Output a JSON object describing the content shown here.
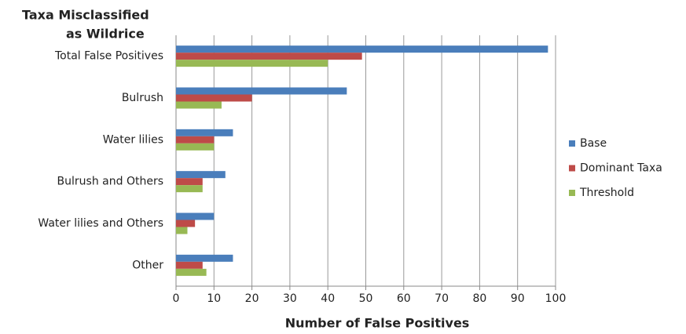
{
  "chart_data": {
    "type": "bar",
    "orientation": "horizontal",
    "title": [
      "Taxa Misclassified",
      "as Wildrice"
    ],
    "xlabel": "Number of False Positives",
    "categories": [
      "Total False Positives",
      "Bulrush",
      "Water lilies",
      "Bulrush and Others",
      "Water lilies and Others",
      "Other"
    ],
    "series": [
      {
        "name": "Base",
        "color": "#4a7ebb",
        "values": [
          98,
          45,
          15,
          13,
          10,
          15
        ]
      },
      {
        "name": "Dominant Taxa",
        "color": "#be4b48",
        "values": [
          49,
          20,
          10,
          7,
          5,
          7
        ]
      },
      {
        "name": "Threshold",
        "color": "#98b954",
        "values": [
          40,
          12,
          10,
          7,
          3,
          8
        ]
      }
    ],
    "xlim": [
      0,
      100
    ],
    "xticks": [
      0,
      10,
      20,
      30,
      40,
      50,
      60,
      70,
      80,
      90,
      100
    ],
    "grid": true,
    "legend": "right"
  }
}
